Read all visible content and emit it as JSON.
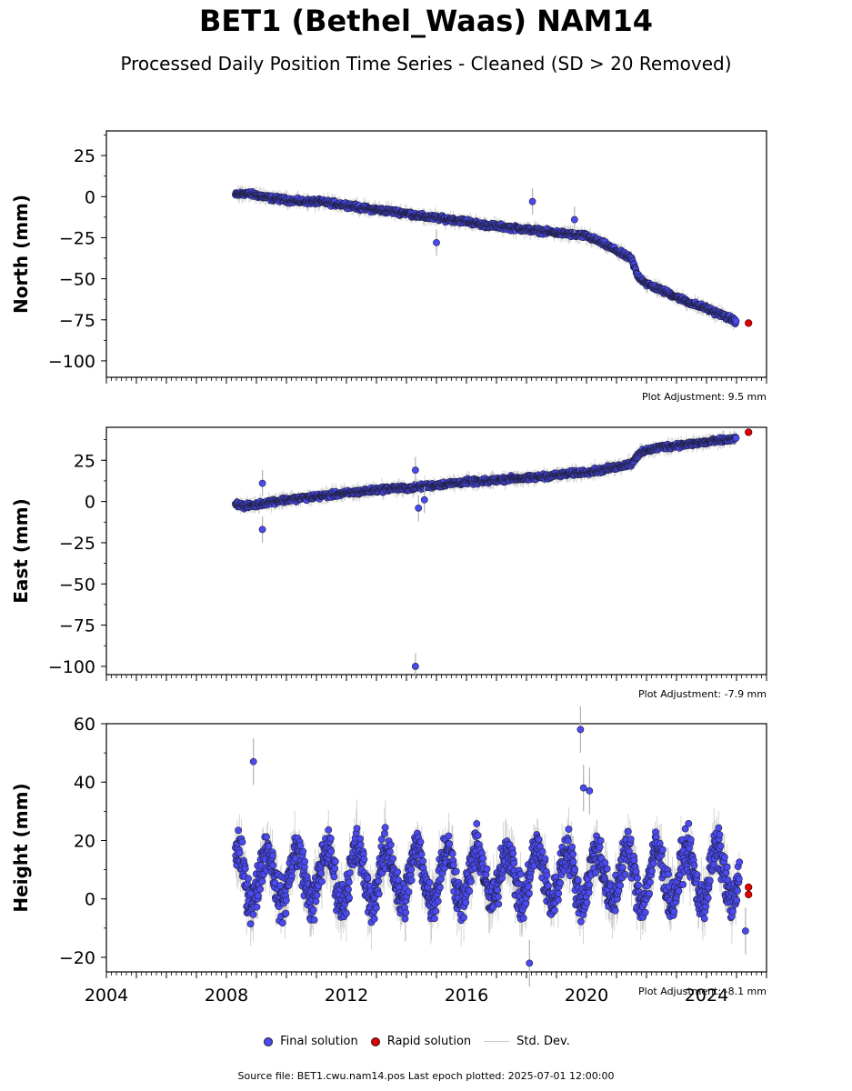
{
  "title": "BET1 (Bethel_Waas) NAM14",
  "subtitle": "Processed Daily Position Time Series - Cleaned (SD > 20 Removed)",
  "legend": {
    "final": "Final solution",
    "rapid": "Rapid solution",
    "std": "Std. Dev."
  },
  "footer": "Source file: BET1.cwu.nam14.pos  Last epoch plotted: 2025-07-01 12:00:00",
  "colors": {
    "final": "#4a4af0",
    "rapid": "#e00000",
    "std": "#b0b0b0"
  },
  "chart_data": [
    {
      "type": "scatter",
      "ylabel": "North (mm)",
      "adjustment": "Plot Adjustment: 9.5 mm",
      "xlim": [
        2004,
        2026
      ],
      "ylim": [
        -110,
        40
      ],
      "yticks": [
        25,
        0,
        -25,
        -50,
        -75,
        -100
      ],
      "ytick_labels": [
        "25",
        "0",
        "−25",
        "−50",
        "−75",
        "−100"
      ],
      "series": [
        {
          "name": "Final solution",
          "x": [
            2008.3,
            2008.6,
            2009.0,
            2009.5,
            2010.0,
            2010.5,
            2011.0,
            2011.5,
            2012.0,
            2012.5,
            2013.0,
            2013.5,
            2014.0,
            2014.5,
            2015.0,
            2015.5,
            2016.0,
            2016.5,
            2017.0,
            2017.5,
            2018.0,
            2018.5,
            2019.0,
            2019.5,
            2020.0,
            2020.5,
            2021.0,
            2021.5,
            2021.7,
            2022.0,
            2022.5,
            2023.0,
            2023.5,
            2024.0,
            2024.5,
            2025.0
          ],
          "y": [
            1,
            2,
            1,
            -1,
            -2,
            -3,
            -3,
            -4,
            -5,
            -7,
            -8,
            -9,
            -10,
            -12,
            -13,
            -14,
            -15,
            -17,
            -18,
            -19,
            -20,
            -21,
            -22,
            -23,
            -24,
            -28,
            -33,
            -38,
            -48,
            -53,
            -57,
            -61,
            -65,
            -68,
            -72,
            -76
          ],
          "outliers": {
            "x": [
              2018.2,
              2019.6,
              2015.0
            ],
            "y": [
              -3,
              -14,
              -28
            ]
          }
        },
        {
          "name": "Rapid solution",
          "x": [
            2025.4
          ],
          "y": [
            -77
          ]
        }
      ]
    },
    {
      "type": "scatter",
      "ylabel": "East (mm)",
      "adjustment": "Plot Adjustment: -7.9 mm",
      "xlim": [
        2004,
        2026
      ],
      "ylim": [
        -105,
        45
      ],
      "yticks": [
        25,
        0,
        -25,
        -50,
        -75,
        -100
      ],
      "ytick_labels": [
        "25",
        "0",
        "−25",
        "−50",
        "−75",
        "−100"
      ],
      "series": [
        {
          "name": "Final solution",
          "x": [
            2008.3,
            2008.6,
            2009.0,
            2009.5,
            2010.0,
            2010.5,
            2011.0,
            2011.5,
            2012.0,
            2012.5,
            2013.0,
            2013.5,
            2014.0,
            2014.5,
            2015.0,
            2015.5,
            2016.0,
            2016.5,
            2017.0,
            2017.5,
            2018.0,
            2018.5,
            2019.0,
            2019.5,
            2020.0,
            2020.5,
            2021.0,
            2021.5,
            2021.7,
            2022.0,
            2022.5,
            2023.0,
            2023.5,
            2024.0,
            2024.5,
            2025.0
          ],
          "y": [
            -1,
            -3,
            -2,
            0,
            1,
            2,
            3,
            4,
            5,
            6,
            7,
            8,
            8,
            9,
            10,
            11,
            12,
            12,
            13,
            14,
            14,
            15,
            16,
            17,
            18,
            19,
            21,
            23,
            28,
            31,
            33,
            34,
            35,
            36,
            37,
            38
          ],
          "outliers": {
            "x": [
              2009.2,
              2009.2,
              2014.3,
              2014.4,
              2014.6,
              2014.3
            ],
            "y": [
              11,
              -17,
              19,
              -4,
              1,
              -100
            ]
          }
        },
        {
          "name": "Rapid solution",
          "x": [
            2025.4
          ],
          "y": [
            42
          ]
        }
      ]
    },
    {
      "type": "scatter",
      "ylabel": "Height (mm)",
      "adjustment": "Plot Adjustment: -8.1 mm",
      "xlim": [
        2004,
        2026
      ],
      "ylim": [
        -25,
        60
      ],
      "yticks": [
        60,
        40,
        20,
        0,
        -20
      ],
      "ytick_labels": [
        "60",
        "40",
        "20",
        "0",
        "−20"
      ],
      "xticks": [
        2004,
        2008,
        2012,
        2016,
        2020,
        2024
      ],
      "xtick_labels": [
        "2004",
        "2008",
        "2012",
        "2016",
        "2020",
        "2024"
      ],
      "series": [
        {
          "name": "Final solution",
          "seasonal": {
            "start": 2008.3,
            "end": 2025.1,
            "mean": 8,
            "amplitude": 9,
            "noise": 6
          },
          "outliers": {
            "x": [
              2008.9,
              2019.8,
              2019.9,
              2020.1,
              2025.3,
              2018.1
            ],
            "y": [
              47,
              58,
              38,
              37,
              -11,
              -22
            ]
          }
        },
        {
          "name": "Rapid solution",
          "x": [
            2025.4,
            2025.4
          ],
          "y": [
            4,
            1.5
          ]
        }
      ]
    }
  ]
}
